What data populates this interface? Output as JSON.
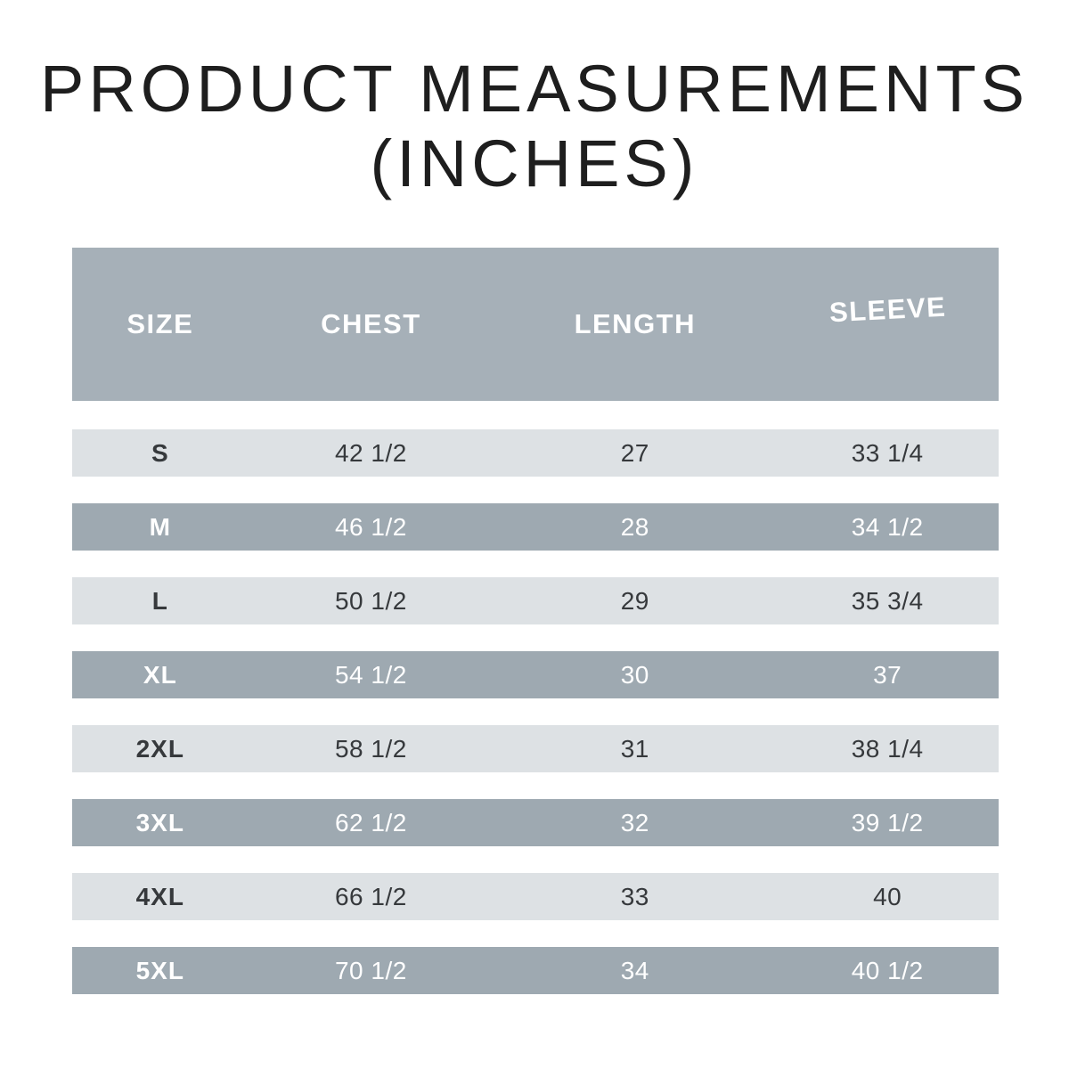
{
  "title": {
    "line1": "PRODUCT MEASUREMENTS",
    "line2": "(INCHES)"
  },
  "chart_data": {
    "type": "table",
    "title": "PRODUCT MEASUREMENTS (INCHES)",
    "units": "inches",
    "columns": [
      "SIZE",
      "CHEST",
      "LENGTH",
      "SLEEVE"
    ],
    "rows": [
      [
        "S",
        "42 1/2",
        "27",
        "33 1/4"
      ],
      [
        "M",
        "46 1/2",
        "28",
        "34 1/2"
      ],
      [
        "L",
        "50 1/2",
        "29",
        "35 3/4"
      ],
      [
        "XL",
        "54 1/2",
        "30",
        "37"
      ],
      [
        "2XL",
        "58 1/2",
        "31",
        "38 1/4"
      ],
      [
        "3XL",
        "62 1/2",
        "32",
        "39 1/2"
      ],
      [
        "4XL",
        "66 1/2",
        "33",
        "40"
      ],
      [
        "5XL",
        "70 1/2",
        "34",
        "40 1/2"
      ]
    ]
  },
  "colors": {
    "header_background": "#a6b0b8",
    "dark_row_background": "#9ea9b1",
    "light_row_background": "#dde1e4",
    "header_text": "#ffffff",
    "dark_row_text": "#ffffff",
    "light_row_text": "#36393c",
    "title_text": "#1e1e1e",
    "page_background": "#ffffff"
  }
}
